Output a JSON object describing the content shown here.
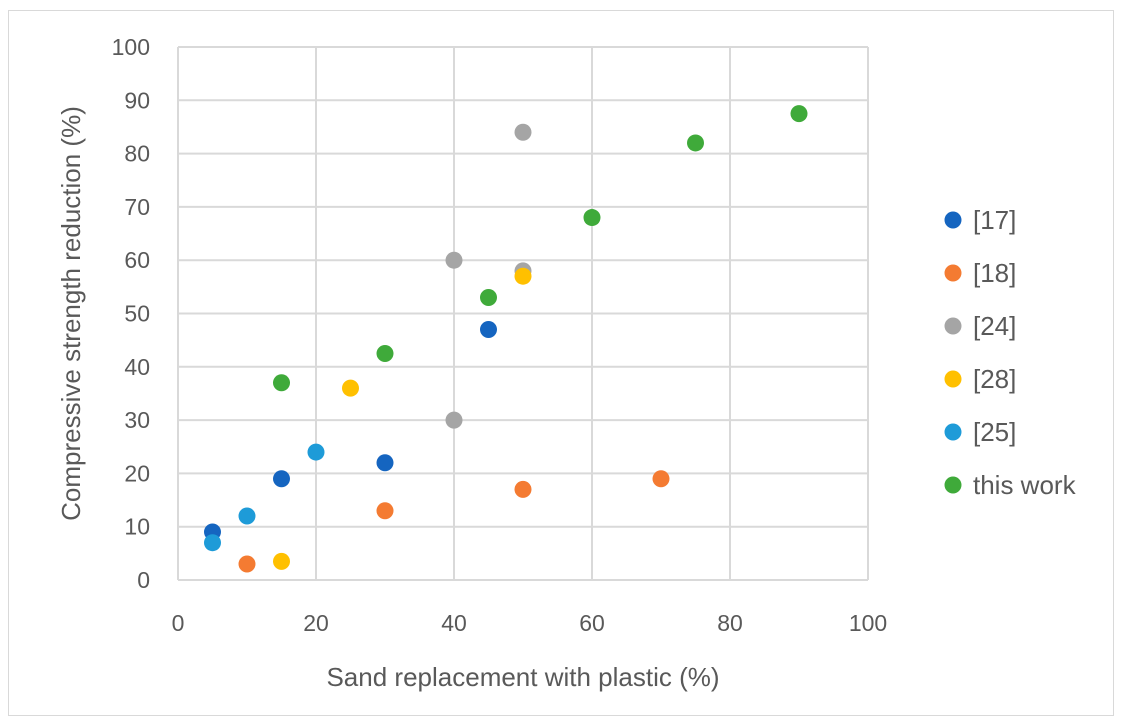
{
  "chart_data": {
    "type": "scatter",
    "title": "",
    "xlabel": "Sand replacement with plastic (%)",
    "ylabel": "Compressive strength reduction (%)",
    "xlim": [
      0,
      100
    ],
    "ylim": [
      0,
      100
    ],
    "xticks": [
      "0",
      "20",
      "40",
      "60",
      "80",
      "100"
    ],
    "yticks": [
      "0",
      "10",
      "20",
      "30",
      "40",
      "50",
      "60",
      "70",
      "80",
      "90",
      "100"
    ],
    "grid": true,
    "legend_position": "right",
    "series": [
      {
        "name": "[17]",
        "color": "#1565C0",
        "points": [
          [
            5,
            9
          ],
          [
            15,
            19
          ],
          [
            30,
            22
          ],
          [
            45,
            47
          ]
        ]
      },
      {
        "name": "[18]",
        "color": "#F47B32",
        "points": [
          [
            10,
            3
          ],
          [
            30,
            13
          ],
          [
            50,
            17
          ],
          [
            70,
            19
          ]
        ]
      },
      {
        "name": "[24]",
        "color": "#A5A5A5",
        "points": [
          [
            40,
            30
          ],
          [
            40,
            60
          ],
          [
            50,
            58
          ],
          [
            50,
            84
          ]
        ]
      },
      {
        "name": "[28]",
        "color": "#FFC000",
        "points": [
          [
            15,
            3.5
          ],
          [
            25,
            36
          ],
          [
            50,
            57
          ]
        ]
      },
      {
        "name": "[25]",
        "color": "#1E9BD8",
        "points": [
          [
            5,
            7
          ],
          [
            10,
            12
          ],
          [
            20,
            24
          ]
        ]
      },
      {
        "name": "this work",
        "color": "#3FAA3A",
        "points": [
          [
            15,
            37
          ],
          [
            30,
            42.5
          ],
          [
            45,
            53
          ],
          [
            60,
            68
          ],
          [
            75,
            82
          ],
          [
            90,
            87.5
          ]
        ]
      }
    ]
  }
}
